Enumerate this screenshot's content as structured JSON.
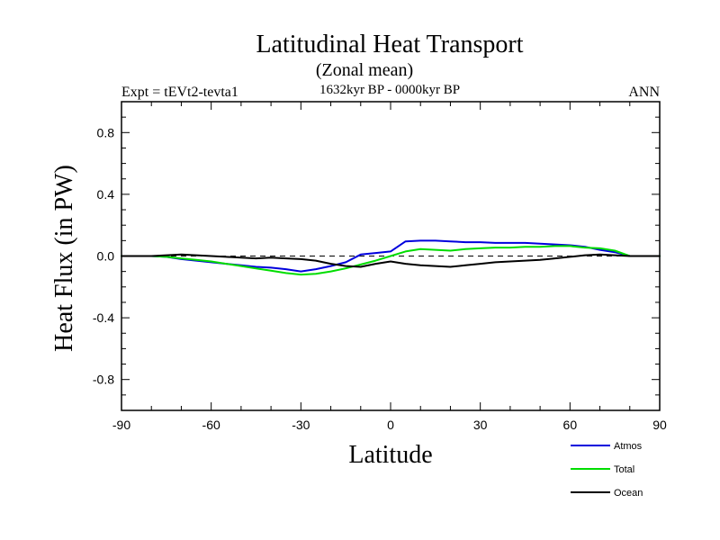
{
  "chart_data": {
    "type": "line",
    "title": "Latitudinal Heat Transport",
    "subtitle": "(Zonal mean)",
    "period": "1632kyr BP - 0000kyr BP",
    "experiment": "Expt = tEVt2-tevta1",
    "season": "ANN",
    "xlabel": "Latitude",
    "ylabel": "Heat Flux (in PW)",
    "xlim": [
      -90,
      90
    ],
    "ylim": [
      -1.0,
      1.0
    ],
    "xticks": [
      -90,
      -60,
      -30,
      0,
      30,
      60,
      90
    ],
    "xtick_labels": [
      "-90",
      "-60",
      "-30",
      "0",
      "30",
      "60",
      "90"
    ],
    "yticks": [
      0.8,
      0.4,
      0.0,
      -0.4,
      -0.8
    ],
    "ytick_labels": [
      "0.8",
      "0.4",
      "0.0",
      "-0.4",
      "-0.8"
    ],
    "reference_line": 0.0,
    "series": [
      {
        "name": "Atmos",
        "color": "#0000dd",
        "x": [
          -90,
          -80,
          -75,
          -70,
          -65,
          -60,
          -55,
          -50,
          -45,
          -40,
          -35,
          -30,
          -25,
          -20,
          -15,
          -10,
          -5,
          0,
          5,
          10,
          15,
          20,
          25,
          30,
          35,
          40,
          45,
          50,
          55,
          60,
          65,
          70,
          75,
          80,
          85,
          90
        ],
        "y": [
          0.0,
          0.0,
          -0.005,
          -0.02,
          -0.03,
          -0.04,
          -0.05,
          -0.06,
          -0.07,
          -0.075,
          -0.085,
          -0.1,
          -0.085,
          -0.065,
          -0.04,
          0.01,
          0.02,
          0.03,
          0.095,
          0.1,
          0.1,
          0.095,
          0.09,
          0.09,
          0.085,
          0.085,
          0.085,
          0.08,
          0.075,
          0.07,
          0.06,
          0.04,
          0.025,
          0.0,
          0.0,
          0.0
        ]
      },
      {
        "name": "Total",
        "color": "#00dd00",
        "x": [
          -90,
          -80,
          -75,
          -70,
          -65,
          -60,
          -55,
          -50,
          -45,
          -40,
          -35,
          -30,
          -25,
          -20,
          -15,
          -10,
          -5,
          0,
          5,
          10,
          15,
          20,
          25,
          30,
          35,
          40,
          45,
          50,
          55,
          60,
          65,
          70,
          75,
          80,
          85,
          90
        ],
        "y": [
          0.0,
          0.0,
          -0.005,
          -0.015,
          -0.025,
          -0.035,
          -0.05,
          -0.065,
          -0.08,
          -0.095,
          -0.11,
          -0.12,
          -0.115,
          -0.1,
          -0.08,
          -0.055,
          -0.03,
          0.0,
          0.03,
          0.045,
          0.04,
          0.035,
          0.045,
          0.05,
          0.055,
          0.055,
          0.06,
          0.06,
          0.065,
          0.065,
          0.055,
          0.05,
          0.035,
          0.0,
          0.0,
          0.0
        ]
      },
      {
        "name": "Ocean",
        "color": "#000000",
        "x": [
          -90,
          -80,
          -75,
          -70,
          -65,
          -60,
          -55,
          -50,
          -45,
          -40,
          -35,
          -30,
          -25,
          -20,
          -15,
          -10,
          -5,
          0,
          5,
          10,
          15,
          20,
          25,
          30,
          35,
          40,
          45,
          50,
          55,
          60,
          65,
          70,
          75,
          80,
          85,
          90
        ],
        "y": [
          0.0,
          0.0,
          0.005,
          0.01,
          0.005,
          0.0,
          -0.005,
          -0.01,
          -0.015,
          -0.01,
          -0.015,
          -0.02,
          -0.03,
          -0.05,
          -0.065,
          -0.07,
          -0.05,
          -0.035,
          -0.05,
          -0.06,
          -0.065,
          -0.07,
          -0.06,
          -0.05,
          -0.04,
          -0.035,
          -0.03,
          -0.025,
          -0.015,
          -0.005,
          0.005,
          0.01,
          0.005,
          0.0,
          0.0,
          0.0
        ]
      }
    ],
    "legend": {
      "placement": "bottom-right",
      "entries": [
        "Atmos",
        "Total",
        "Ocean"
      ]
    }
  }
}
